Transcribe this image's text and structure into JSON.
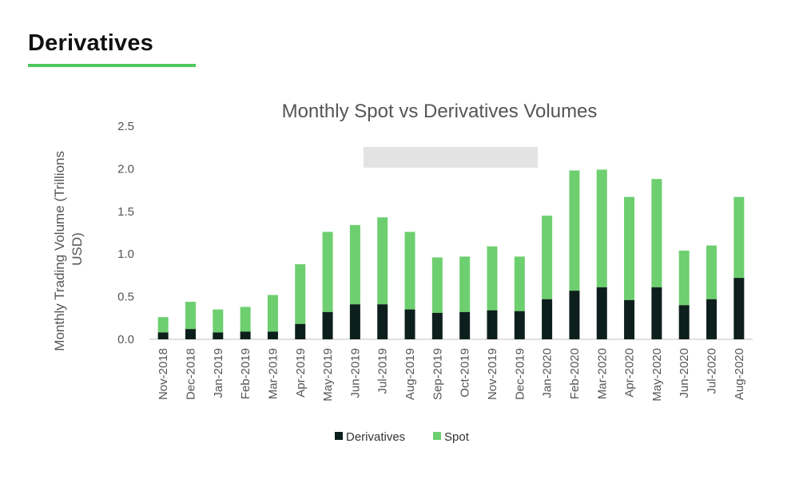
{
  "page": {
    "section_title": "Derivatives"
  },
  "colors": {
    "accent_underline": "#4fc95f",
    "derivatives": "#0d1f1c",
    "spot": "#6dcf6f",
    "watermark": "#e3e3e3"
  },
  "chart_data": {
    "type": "bar",
    "stacked": true,
    "title": "Monthly Spot vs Derivatives Volumes",
    "xlabel": "",
    "ylabel": "Monthly Trading Volume (Trillions USD)",
    "ylim": [
      0,
      2.5
    ],
    "yticks": [
      "0.0",
      "0.5",
      "1.0",
      "1.5",
      "2.0",
      "2.5"
    ],
    "grid": false,
    "legend_position": "bottom",
    "categories": [
      "Nov-2018",
      "Dec-2018",
      "Jan-2019",
      "Feb-2019",
      "Mar-2019",
      "Apr-2019",
      "May-2019",
      "Jun-2019",
      "Jul-2019",
      "Aug-2019",
      "Sep-2019",
      "Oct-2019",
      "Nov-2019",
      "Dec-2019",
      "Jan-2020",
      "Feb-2020",
      "Mar-2020",
      "Apr-2020",
      "May-2020",
      "Jun-2020",
      "Jul-2020",
      "Aug-2020"
    ],
    "series": [
      {
        "name": "Derivatives",
        "color": "#0d1f1c",
        "values": [
          0.08,
          0.12,
          0.08,
          0.09,
          0.09,
          0.18,
          0.32,
          0.41,
          0.41,
          0.35,
          0.31,
          0.32,
          0.34,
          0.33,
          0.47,
          0.57,
          0.61,
          0.46,
          0.61,
          0.4,
          0.47,
          0.72
        ]
      },
      {
        "name": "Spot",
        "color": "#6dcf6f",
        "values": [
          0.18,
          0.32,
          0.27,
          0.29,
          0.43,
          0.7,
          0.94,
          0.93,
          1.02,
          0.91,
          0.65,
          0.65,
          0.75,
          0.64,
          0.98,
          1.41,
          1.38,
          1.21,
          1.27,
          0.64,
          0.63,
          0.95
        ]
      }
    ]
  }
}
